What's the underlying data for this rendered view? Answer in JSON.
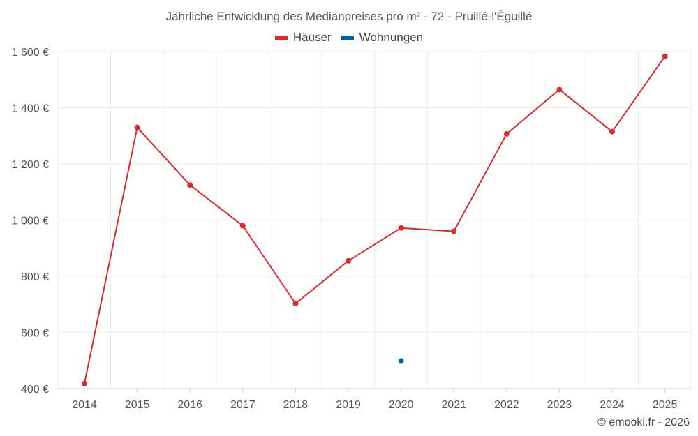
{
  "chart_data": {
    "type": "line",
    "title": "Jährliche Entwicklung des Medianpreises pro m² - 72 - Pruillé-l'Éguillé",
    "categories": [
      "2014",
      "2015",
      "2016",
      "2017",
      "2018",
      "2019",
      "2020",
      "2021",
      "2022",
      "2023",
      "2024",
      "2025"
    ],
    "series": [
      {
        "name": "Häuser",
        "color": "#d32f2f",
        "values": [
          418,
          1330,
          1125,
          980,
          703,
          855,
          972,
          960,
          1307,
          1465,
          1315,
          1583
        ]
      },
      {
        "name": "Wohnungen",
        "color": "#00639e",
        "values": [
          null,
          null,
          null,
          null,
          null,
          null,
          498,
          null,
          null,
          null,
          null,
          null
        ]
      }
    ],
    "ylim": [
      400,
      1600
    ],
    "yticks": [
      400,
      600,
      800,
      1000,
      1200,
      1400,
      1600
    ],
    "ytick_labels": [
      "400 €",
      "600 €",
      "800 €",
      "1 000 €",
      "1 200 €",
      "1 400 €",
      "1 600 €"
    ],
    "xlabel": "",
    "ylabel": "",
    "grid": true,
    "legend_position": "top-center"
  },
  "credit": "© emooki.fr - 2026"
}
